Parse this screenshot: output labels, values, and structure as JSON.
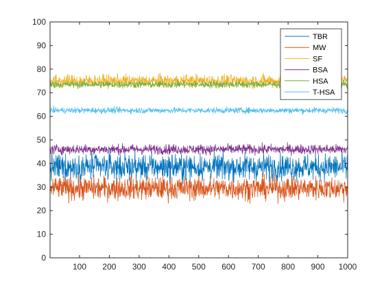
{
  "chart_data": {
    "type": "line",
    "title": "",
    "xlabel": "",
    "ylabel": "",
    "xlim": [
      1,
      1000
    ],
    "ylim": [
      0,
      100
    ],
    "x_ticks": [
      100,
      200,
      300,
      400,
      500,
      600,
      700,
      800,
      900,
      1000
    ],
    "y_ticks": [
      0,
      10,
      20,
      30,
      40,
      50,
      60,
      70,
      80,
      90,
      100
    ],
    "grid": false,
    "legend_position": "top-right",
    "series": [
      {
        "name": "TBR",
        "color": "#0072BD",
        "mean": 38.5,
        "spread": 4.0,
        "min": 24.5,
        "max": 46.5
      },
      {
        "name": "MW",
        "color": "#D95319",
        "mean": 29.5,
        "spread": 3.5,
        "min": 18.5,
        "max": 37.0
      },
      {
        "name": "SF",
        "color": "#EDB120",
        "mean": 75.0,
        "spread": 1.9,
        "min": 71.0,
        "max": 80.0
      },
      {
        "name": "BSA",
        "color": "#7E2F8E",
        "mean": 46.0,
        "spread": 1.5,
        "min": 42.5,
        "max": 52.0
      },
      {
        "name": "HSA",
        "color": "#77AC30",
        "mean": 73.5,
        "spread": 1.1,
        "min": 70.0,
        "max": 77.0
      },
      {
        "name": "T-HSA",
        "color": "#4DBEEE",
        "mean": 62.5,
        "spread": 0.9,
        "min": 59.5,
        "max": 65.5
      }
    ]
  }
}
